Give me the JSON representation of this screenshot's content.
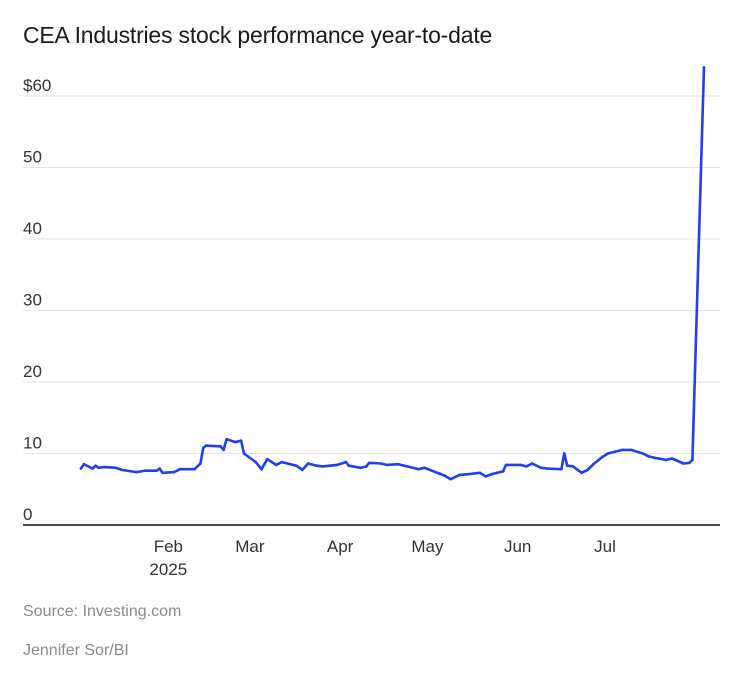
{
  "header": {
    "title": "CEA Industries stock performance year-to-date"
  },
  "footer": {
    "source": "Source: Investing.com",
    "credit": "Jennifer Sor/BI"
  },
  "chart_data": {
    "type": "line",
    "title": "CEA Industries stock performance year-to-date",
    "xlabel": "",
    "ylabel": "",
    "ylim": [
      0,
      60
    ],
    "yticks": [
      {
        "value": 0,
        "label": "0"
      },
      {
        "value": 10,
        "label": "10"
      },
      {
        "value": 20,
        "label": "20"
      },
      {
        "value": 30,
        "label": "30"
      },
      {
        "value": 40,
        "label": "40"
      },
      {
        "value": 50,
        "label": "50"
      },
      {
        "value": 60,
        "label": "$60"
      }
    ],
    "xticks": [
      {
        "label": "Feb",
        "sublabel": "2025",
        "date": "2025-02-01"
      },
      {
        "label": "Mar",
        "sublabel": "",
        "date": "2025-03-01"
      },
      {
        "label": "Apr",
        "sublabel": "",
        "date": "2025-04-01"
      },
      {
        "label": "May",
        "sublabel": "",
        "date": "2025-05-01"
      },
      {
        "label": "Jun",
        "sublabel": "",
        "date": "2025-06-01"
      },
      {
        "label": "Jul",
        "sublabel": "",
        "date": "2025-07-01"
      }
    ],
    "grid": true,
    "line_color": "#1f3ff0",
    "series": [
      {
        "points": [
          [
            "2025-01-02",
            7.9
          ],
          [
            "2025-01-03",
            8.5
          ],
          [
            "2025-01-06",
            7.9
          ],
          [
            "2025-01-07",
            8.3
          ],
          [
            "2025-01-08",
            8.0
          ],
          [
            "2025-01-10",
            8.1
          ],
          [
            "2025-01-14",
            8.0
          ],
          [
            "2025-01-16",
            7.7
          ],
          [
            "2025-01-21",
            7.4
          ],
          [
            "2025-01-24",
            7.6
          ],
          [
            "2025-01-28",
            7.6
          ],
          [
            "2025-01-29",
            7.9
          ],
          [
            "2025-01-30",
            7.3
          ],
          [
            "2025-02-03",
            7.4
          ],
          [
            "2025-02-05",
            7.8
          ],
          [
            "2025-02-10",
            7.8
          ],
          [
            "2025-02-12",
            8.6
          ],
          [
            "2025-02-13",
            10.8
          ],
          [
            "2025-02-14",
            11.1
          ],
          [
            "2025-02-19",
            11.0
          ],
          [
            "2025-02-20",
            10.5
          ],
          [
            "2025-02-21",
            12.0
          ],
          [
            "2025-02-24",
            11.6
          ],
          [
            "2025-02-26",
            11.8
          ],
          [
            "2025-02-27",
            10.0
          ],
          [
            "2025-03-03",
            8.8
          ],
          [
            "2025-03-05",
            7.8
          ],
          [
            "2025-03-07",
            9.2
          ],
          [
            "2025-03-10",
            8.4
          ],
          [
            "2025-03-12",
            8.8
          ],
          [
            "2025-03-17",
            8.3
          ],
          [
            "2025-03-19",
            7.7
          ],
          [
            "2025-03-21",
            8.6
          ],
          [
            "2025-03-24",
            8.3
          ],
          [
            "2025-03-26",
            8.2
          ],
          [
            "2025-03-31",
            8.4
          ],
          [
            "2025-04-03",
            8.8
          ],
          [
            "2025-04-04",
            8.3
          ],
          [
            "2025-04-08",
            8.0
          ],
          [
            "2025-04-10",
            8.2
          ],
          [
            "2025-04-11",
            8.7
          ],
          [
            "2025-04-15",
            8.6
          ],
          [
            "2025-04-17",
            8.4
          ],
          [
            "2025-04-21",
            8.5
          ],
          [
            "2025-04-24",
            8.2
          ],
          [
            "2025-04-28",
            7.8
          ],
          [
            "2025-04-30",
            8.0
          ],
          [
            "2025-05-05",
            7.2
          ],
          [
            "2025-05-07",
            6.9
          ],
          [
            "2025-05-09",
            6.4
          ],
          [
            "2025-05-12",
            7.0
          ],
          [
            "2025-05-15",
            7.1
          ],
          [
            "2025-05-19",
            7.3
          ],
          [
            "2025-05-21",
            6.8
          ],
          [
            "2025-05-23",
            7.1
          ],
          [
            "2025-05-27",
            7.5
          ],
          [
            "2025-05-28",
            8.4
          ],
          [
            "2025-06-02",
            8.4
          ],
          [
            "2025-06-04",
            8.2
          ],
          [
            "2025-06-06",
            8.6
          ],
          [
            "2025-06-09",
            8.0
          ],
          [
            "2025-06-11",
            7.9
          ],
          [
            "2025-06-16",
            7.8
          ],
          [
            "2025-06-17",
            10.0
          ],
          [
            "2025-06-18",
            8.3
          ],
          [
            "2025-06-20",
            8.2
          ],
          [
            "2025-06-23",
            7.3
          ],
          [
            "2025-06-25",
            7.7
          ],
          [
            "2025-06-27",
            8.5
          ],
          [
            "2025-06-30",
            9.5
          ],
          [
            "2025-07-02",
            10.0
          ],
          [
            "2025-07-07",
            10.5
          ],
          [
            "2025-07-10",
            10.5
          ],
          [
            "2025-07-14",
            10.0
          ],
          [
            "2025-07-16",
            9.6
          ],
          [
            "2025-07-18",
            9.4
          ],
          [
            "2025-07-22",
            9.1
          ],
          [
            "2025-07-24",
            9.3
          ],
          [
            "2025-07-28",
            8.6
          ],
          [
            "2025-07-30",
            8.7
          ],
          [
            "2025-07-31",
            9.1
          ],
          [
            "2025-08-04",
            64.0
          ]
        ]
      }
    ]
  }
}
